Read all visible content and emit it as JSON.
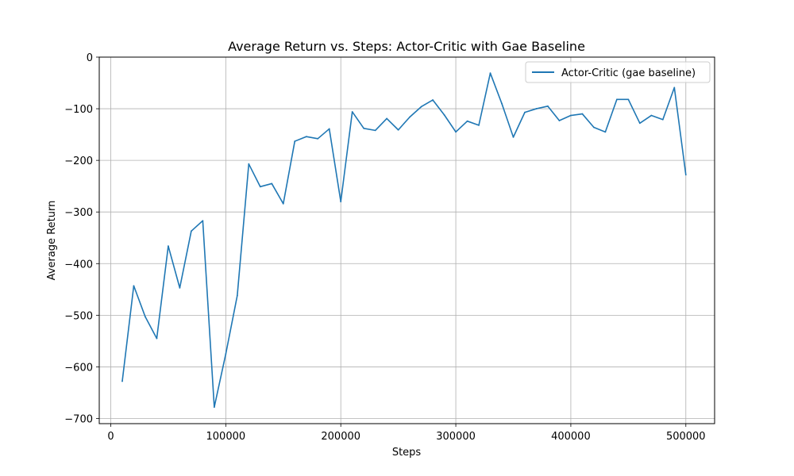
{
  "chart_data": {
    "type": "line",
    "title": "Average Return vs. Steps: Actor-Critic with Gae Baseline",
    "xlabel": "Steps",
    "ylabel": "Average Return",
    "xlim": [
      -10000,
      525000
    ],
    "ylim": [
      -710,
      0
    ],
    "xticks": [
      0,
      100000,
      200000,
      300000,
      400000,
      500000
    ],
    "xtick_labels": [
      "0",
      "100000",
      "200000",
      "300000",
      "400000",
      "500000"
    ],
    "yticks": [
      0,
      -100,
      -200,
      -300,
      -400,
      -500,
      -600,
      -700
    ],
    "ytick_labels": [
      "0",
      "−100",
      "−200",
      "−300",
      "−400",
      "−500",
      "−600",
      "−700"
    ],
    "grid": true,
    "legend_position": "top-right",
    "series": [
      {
        "name": "Actor-Critic (gae baseline)",
        "color": "#1f77b4",
        "x": [
          10000,
          20000,
          30000,
          40000,
          50000,
          60000,
          70000,
          80000,
          90000,
          100000,
          110000,
          120000,
          130000,
          140000,
          150000,
          160000,
          170000,
          180000,
          190000,
          200000,
          210000,
          220000,
          230000,
          240000,
          250000,
          260000,
          270000,
          280000,
          290000,
          300000,
          310000,
          320000,
          330000,
          340000,
          350000,
          360000,
          370000,
          380000,
          390000,
          400000,
          410000,
          420000,
          430000,
          440000,
          450000,
          460000,
          470000,
          480000,
          490000,
          500000
        ],
        "y": [
          -628,
          -443,
          -503,
          -545,
          -366,
          -447,
          -337,
          -317,
          -678,
          -575,
          -462,
          -207,
          -251,
          -245,
          -284,
          -163,
          -154,
          -158,
          -139,
          -280,
          -106,
          -138,
          -142,
          -119,
          -141,
          -116,
          -96,
          -83,
          -112,
          -145,
          -124,
          -132,
          -31,
          -90,
          -155,
          -107,
          -100,
          -95,
          -123,
          -113,
          -110,
          -136,
          -145,
          -82,
          -82,
          -128,
          -113,
          -121,
          -59,
          -228
        ]
      }
    ]
  }
}
